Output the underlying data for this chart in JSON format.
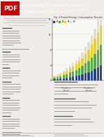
{
  "paper_bg": "#f0ede8",
  "header_bg": "#1a1a1a",
  "header_text": "#ffffff",
  "pdf_bg": "#cc0000",
  "title_line1": "nd analysis of Mux using Adiabatic",
  "title_line2": "Techniques ECRL and PFAL",
  "chart_title": "Fig. 3 Power/Energy Consumption Results",
  "bar_colors": [
    "#1a3d8f",
    "#4aaa3a",
    "#e8d020",
    "#e0ddd0"
  ],
  "bar_heights": [
    [
      0.3,
      0.4,
      0.5,
      0.6,
      0.7,
      0.9,
      1.0,
      1.2,
      1.4,
      1.6,
      1.9,
      2.2,
      2.6,
      3.0,
      3.5,
      4.0
    ],
    [
      0.4,
      0.5,
      0.6,
      0.8,
      1.0,
      1.2,
      1.4,
      1.6,
      1.9,
      2.2,
      2.6,
      3.0,
      3.5,
      4.0,
      4.6,
      5.3
    ],
    [
      0.3,
      0.4,
      0.5,
      0.7,
      0.9,
      1.1,
      1.3,
      1.5,
      1.8,
      2.1,
      2.5,
      2.9,
      3.4,
      3.9,
      4.5,
      5.2
    ],
    [
      0.2,
      0.3,
      0.4,
      0.5,
      0.6,
      0.7,
      0.9,
      1.0,
      1.2,
      1.4,
      1.7,
      2.0,
      2.3,
      2.7,
      3.1,
      3.6
    ]
  ],
  "n_bars": 16,
  "text_gray": "#aaaaaa",
  "text_dark": "#666666",
  "text_section": "#444444",
  "body_text_color": "#777777",
  "col_divider": "#cccccc"
}
